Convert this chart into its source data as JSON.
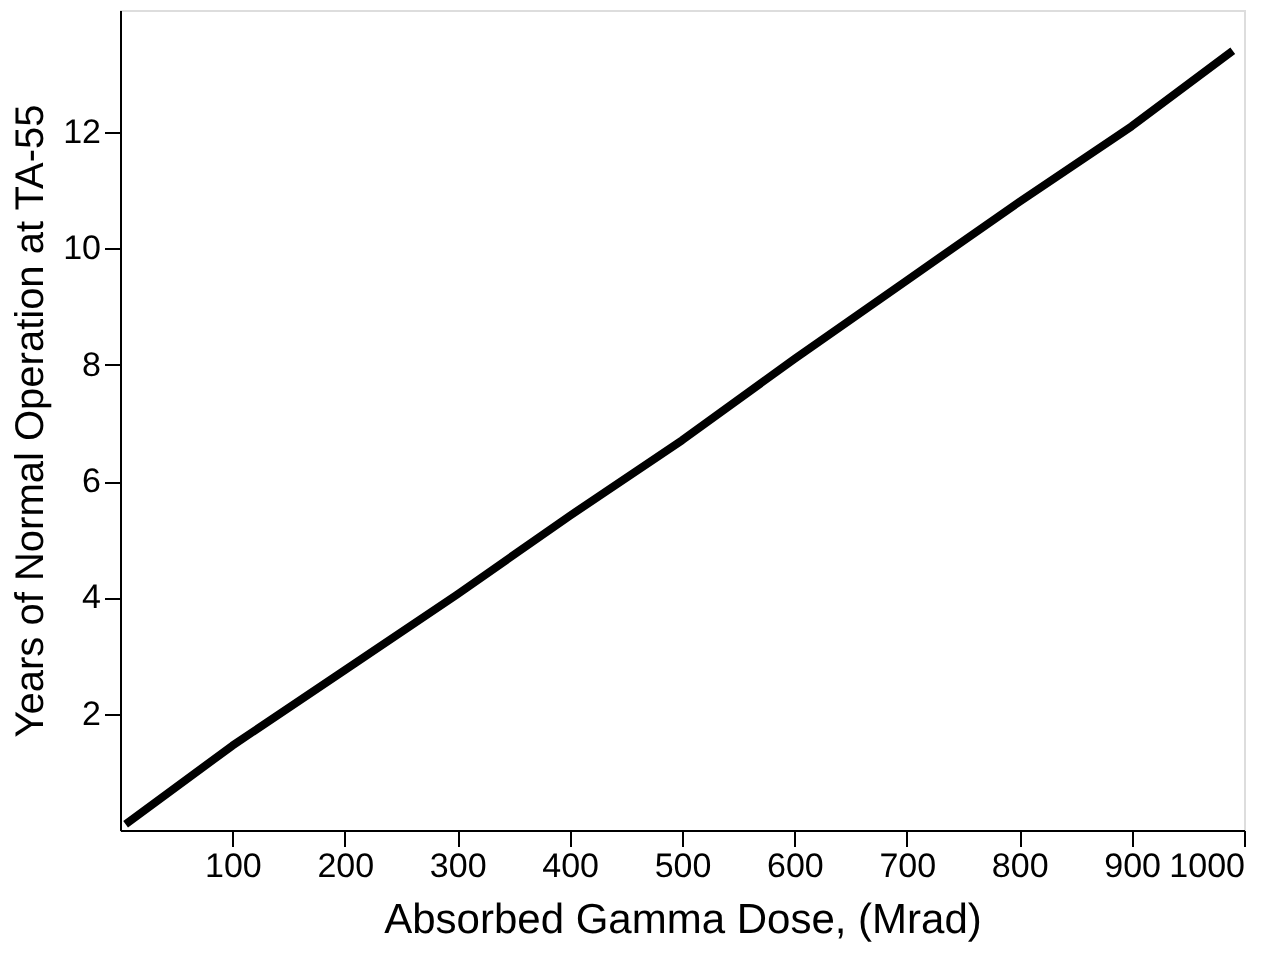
{
  "chart_data": {
    "type": "line",
    "xlabel": "Absorbed Gamma Dose, (Mrad)",
    "ylabel": "Years of Normal Operation at TA-55",
    "x": [
      5,
      100,
      200,
      300,
      400,
      500,
      600,
      700,
      800,
      900,
      990
    ],
    "series": [
      {
        "color": "#000000",
        "values": [
          0.1,
          1.45,
          2.75,
          4.05,
          5.4,
          6.7,
          8.1,
          9.45,
          10.8,
          12.1,
          13.4
        ]
      }
    ],
    "xlim": [
      0,
      1000
    ],
    "ylim": [
      0,
      14.1
    ],
    "xticks": [
      100,
      200,
      300,
      400,
      500,
      600,
      700,
      800,
      900,
      1000
    ],
    "yticks": [
      2,
      4,
      6,
      8,
      10,
      12
    ],
    "grid": false,
    "marker": "none",
    "line_style": "solid"
  }
}
